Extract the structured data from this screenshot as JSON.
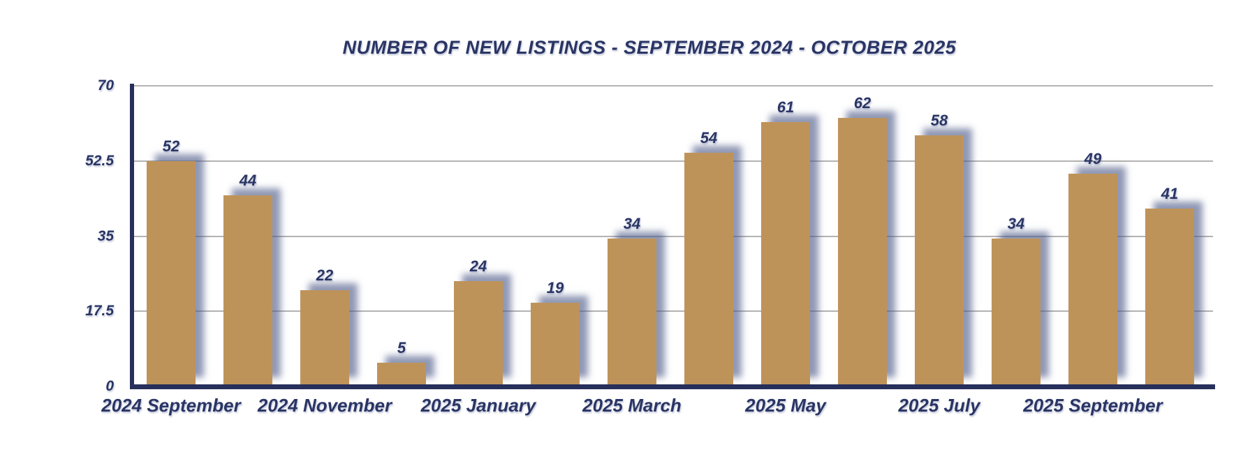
{
  "title": "NUMBER OF NEW LISTINGS - SEPTEMBER 2024 - OCTOBER 2025",
  "chart_data": {
    "type": "bar",
    "title": "NUMBER OF NEW LISTINGS - SEPTEMBER 2024 - OCTOBER 2025",
    "values": [
      52,
      44,
      22,
      5,
      24,
      19,
      34,
      54,
      61,
      62,
      58,
      34,
      49,
      41
    ],
    "bar_value_labels": [
      "52",
      "44",
      "22",
      "5",
      "24",
      "19",
      "34",
      "54",
      "61",
      "62",
      "58",
      "34",
      "49",
      "41"
    ],
    "x_tick_labels": [
      "2024 September",
      "2024 November",
      "2025 January",
      "2025 March",
      "2025 May",
      "2025 July",
      "2025 September"
    ],
    "x_tick_placement": "under every other bar, starting at the first bar",
    "y_tick_labels": [
      "70",
      "52.5",
      "35",
      "17.5",
      "0"
    ],
    "y_tick_values": [
      70,
      52.5,
      35,
      17.5,
      0
    ],
    "ylim": [
      0,
      70
    ],
    "grid": "horizontal gridlines on",
    "legend": "none",
    "colors": {
      "bar_fill": "#BE935A",
      "text_navy": "#2A3565",
      "gridline": "#B3B3B3",
      "axis_navy": "#272F5B",
      "bar_shadow": "rgba(76,88,136,0.62)",
      "background": "#FFFFFF"
    }
  }
}
